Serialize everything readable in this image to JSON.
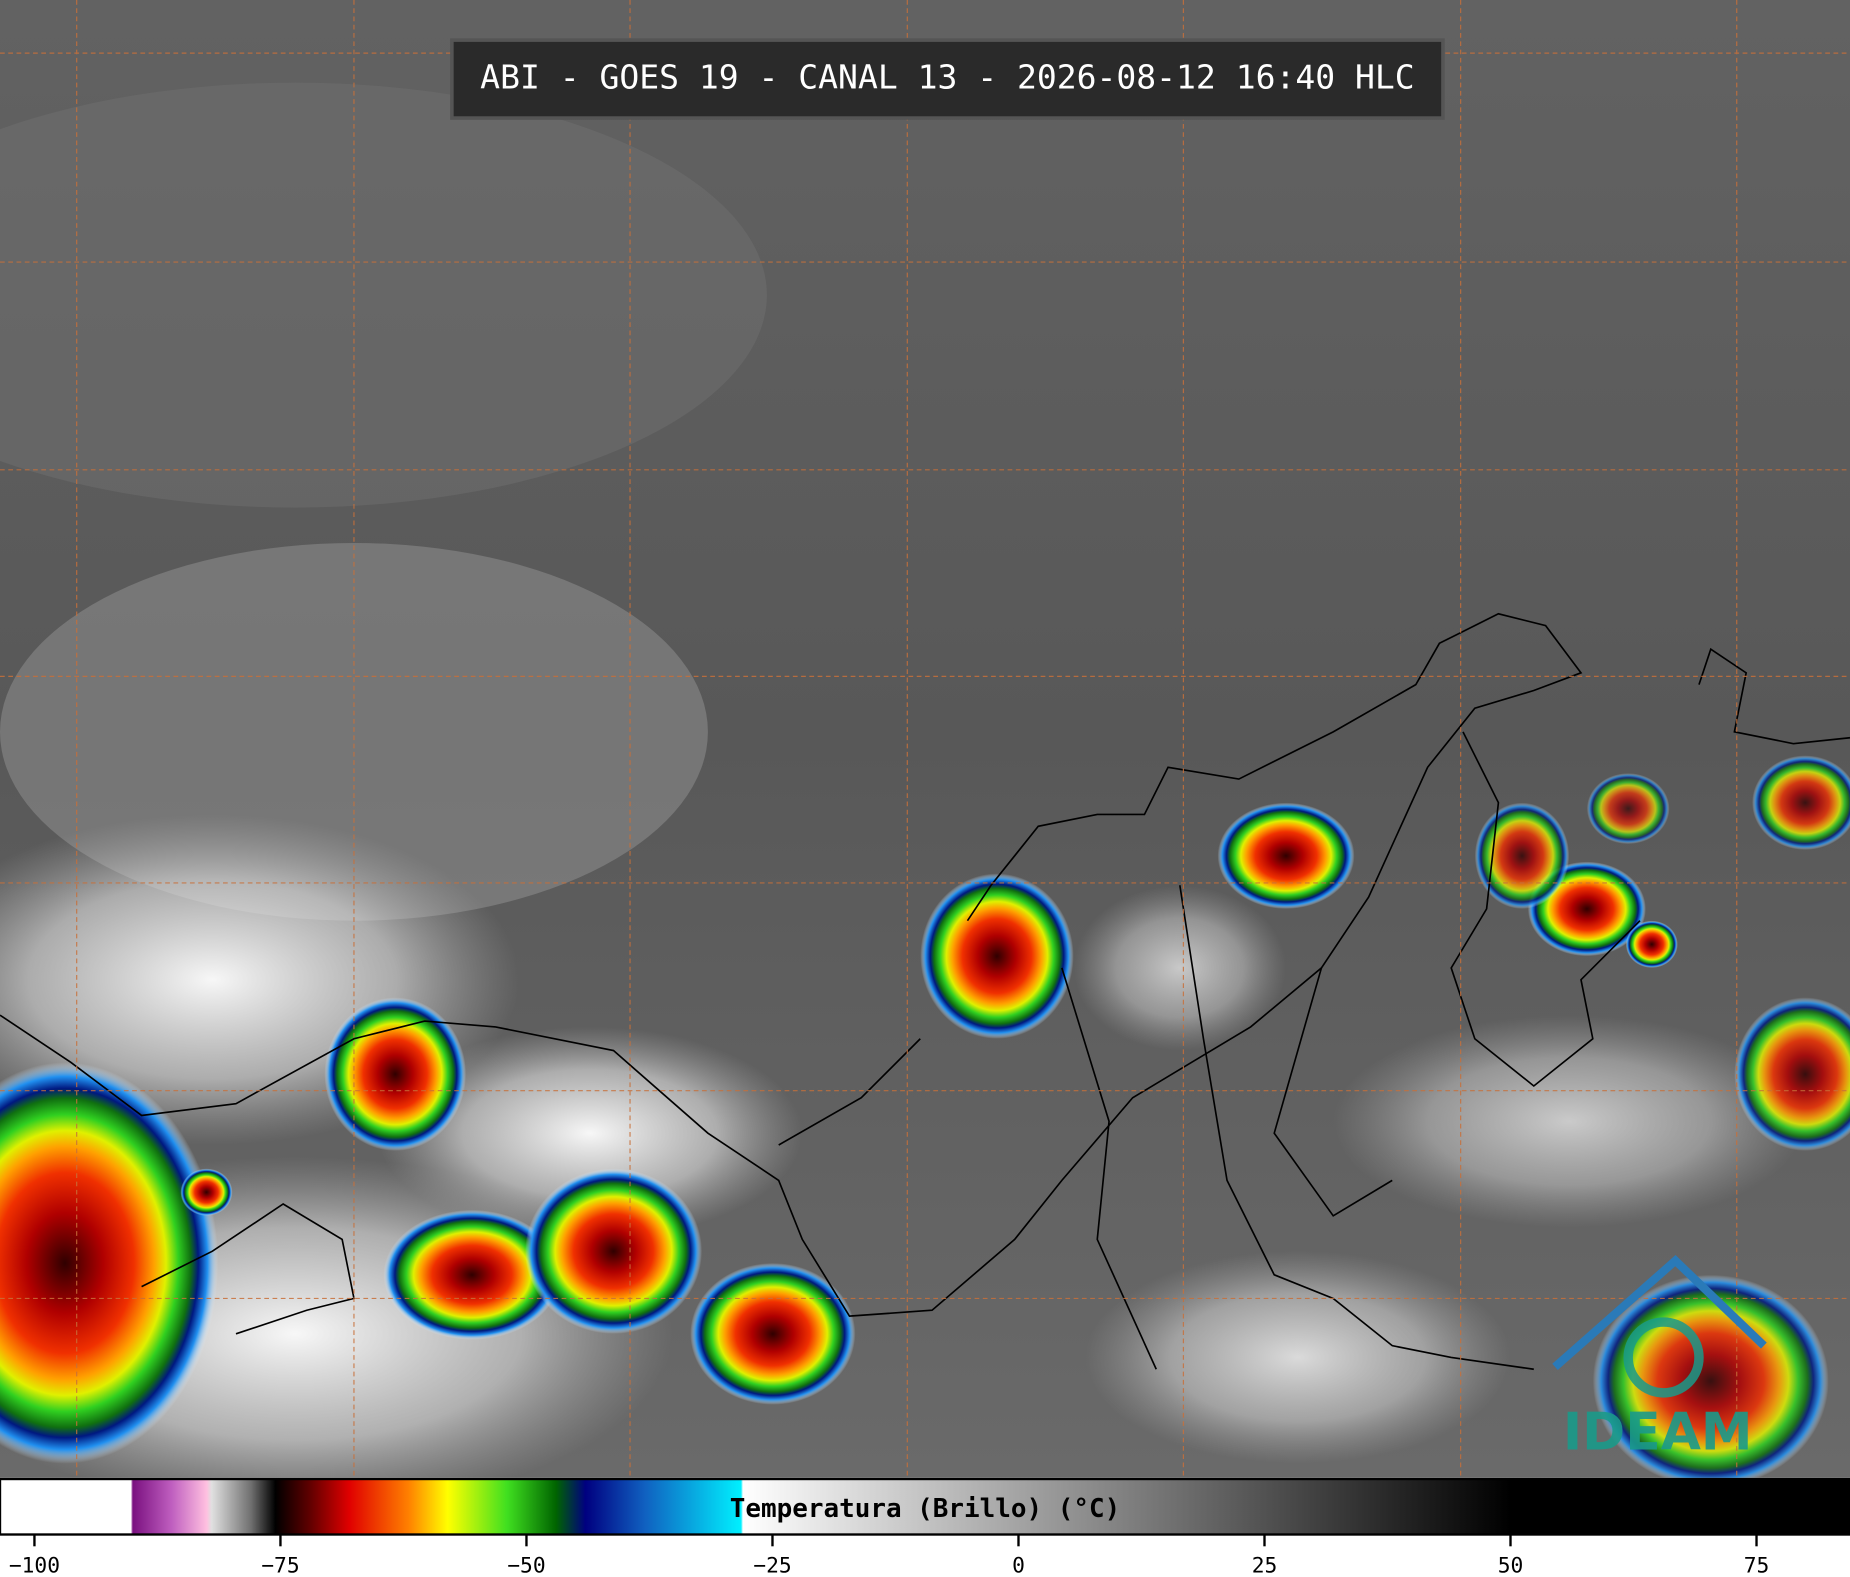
{
  "header": {
    "title": "ABI - GOES 19 - CANAL 13 - 2026-08-12 16:40 HLC"
  },
  "colorbar": {
    "label": "Temperatura (Brillo) (°C)",
    "range": [
      -103.5,
      84.5
    ],
    "ticks": [
      {
        "value": -100,
        "label": "−100"
      },
      {
        "value": -75,
        "label": "−75"
      },
      {
        "value": -50,
        "label": "−50"
      },
      {
        "value": -25,
        "label": "−25"
      },
      0,
      25,
      50,
      75
    ],
    "stops": [
      {
        "value": -103.5,
        "color": "#ffffff"
      },
      {
        "value": -90.2,
        "color": "#ffffff"
      },
      {
        "value": -90,
        "color": "#7a1080"
      },
      {
        "value": -86,
        "color": "#c060c0"
      },
      {
        "value": -82.5,
        "color": "#ffc0e0"
      },
      {
        "value": -82,
        "color": "#e0e0e0"
      },
      {
        "value": -78,
        "color": "#707070"
      },
      {
        "value": -75.5,
        "color": "#000000"
      },
      {
        "value": -72,
        "color": "#600000"
      },
      {
        "value": -68,
        "color": "#e00000"
      },
      {
        "value": -62,
        "color": "#ff8000"
      },
      {
        "value": -58,
        "color": "#ffff00"
      },
      {
        "value": -52,
        "color": "#40e020"
      },
      {
        "value": -47,
        "color": "#006400"
      },
      {
        "value": -44,
        "color": "#000080"
      },
      {
        "value": -38,
        "color": "#1060c0"
      },
      {
        "value": -28.2,
        "color": "#00f0ff"
      },
      {
        "value": -28,
        "color": "#ffffff"
      },
      {
        "value": 50,
        "color": "#000000"
      },
      {
        "value": 84.5,
        "color": "#000000"
      }
    ]
  },
  "logo": {
    "text": "IDEAM"
  }
}
